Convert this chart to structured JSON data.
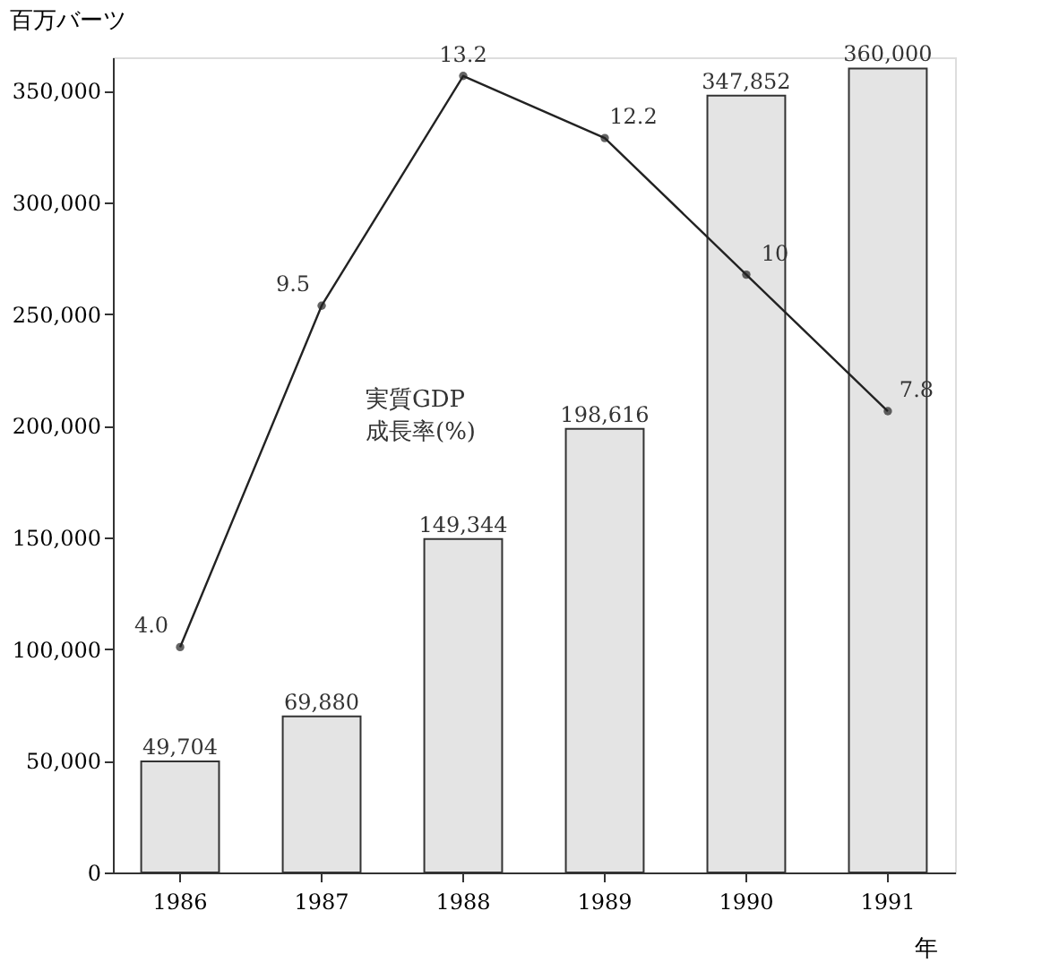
{
  "chart_data": {
    "type": "bar",
    "ylabel": "百万バーツ",
    "xlabel": "年",
    "categories": [
      "1986",
      "1987",
      "1988",
      "1989",
      "1990",
      "1991"
    ],
    "ylim": [
      0,
      365000
    ],
    "yticks": [
      {
        "value": 0,
        "label": "0"
      },
      {
        "value": 50000,
        "label": "50,000"
      },
      {
        "value": 100000,
        "label": "100,000"
      },
      {
        "value": 150000,
        "label": "150,000"
      },
      {
        "value": 200000,
        "label": "200,000"
      },
      {
        "value": 250000,
        "label": "250,000"
      },
      {
        "value": 300000,
        "label": "300,000"
      },
      {
        "value": 350000,
        "label": "350,000"
      }
    ],
    "y2lim": [
      0.37,
      13.5
    ],
    "grid": false,
    "series": [
      {
        "color": "#e4e4e4",
        "values": [
          49704,
          69880,
          149344,
          198616,
          347852,
          360000
        ],
        "value_labels": [
          "49,704",
          "69,880",
          "149,344",
          "198,616",
          "347,852",
          "360,000"
        ]
      },
      {
        "type": "line",
        "name": "実質GDP\n成長率(%)",
        "axis": "y2",
        "color": "#222222",
        "marker": "circle",
        "line_style": "solid",
        "values": [
          4.0,
          9.5,
          13.2,
          12.2,
          10,
          7.8
        ],
        "value_labels": [
          "4.0",
          "9.5",
          "13.2",
          "12.2",
          "10",
          "7.8"
        ]
      }
    ]
  }
}
